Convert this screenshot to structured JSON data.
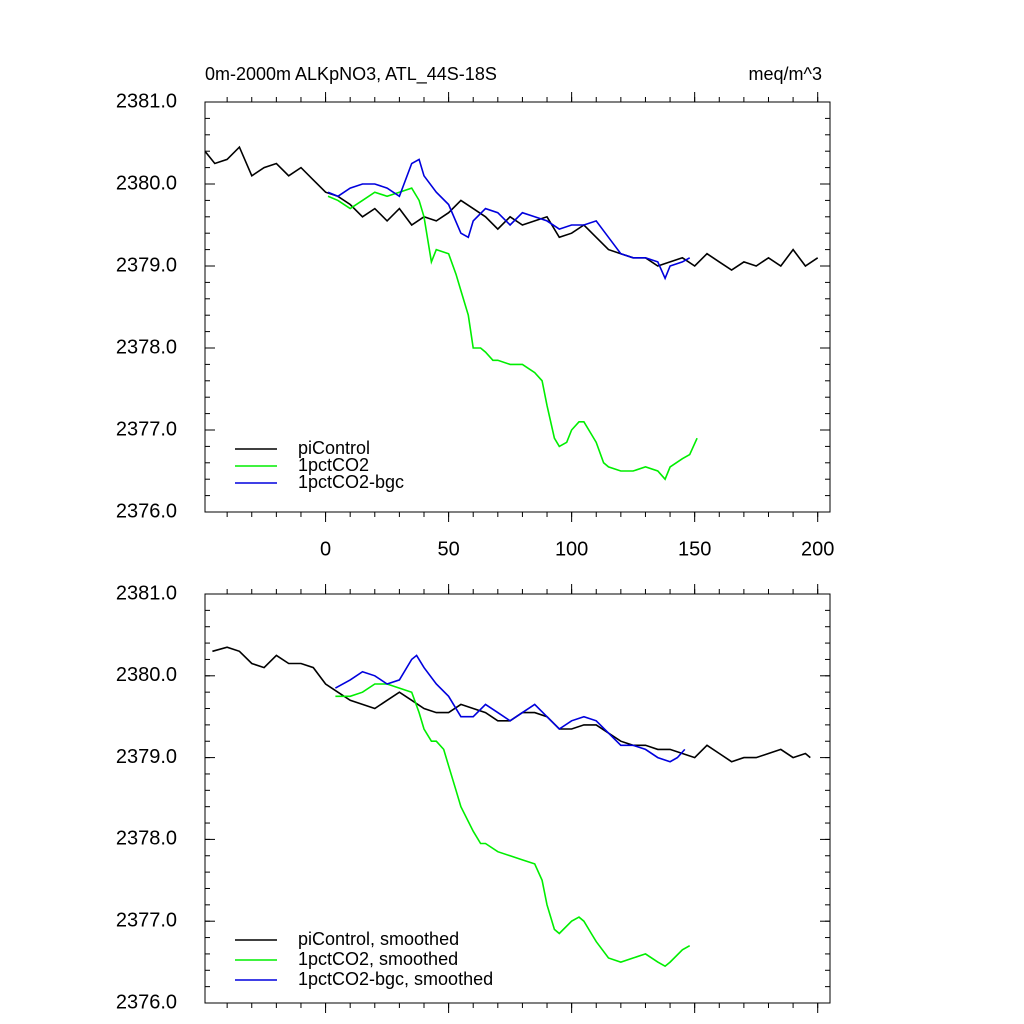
{
  "chart_data": [
    {
      "type": "line",
      "title": "0m-2000m ALKpNO3, ATL_44S-18S",
      "subtitle": "meq/m^3",
      "xlim": [
        -49,
        205
      ],
      "ylim": [
        2376,
        2381
      ],
      "xticks": [
        0,
        50,
        100,
        150,
        200
      ],
      "yticks": [
        {
          "value": 2376,
          "label": "2376.0"
        },
        {
          "value": 2377,
          "label": "2377.0"
        },
        {
          "value": 2378,
          "label": "2378.0"
        },
        {
          "value": 2379,
          "label": "2379.0"
        },
        {
          "value": 2380,
          "label": "2380.0"
        },
        {
          "value": 2381,
          "label": "2381.0"
        }
      ],
      "legend": "lower left",
      "series": [
        {
          "name": "piControl",
          "color": "#000000",
          "x": [
            -49,
            -45,
            -40,
            -35,
            -30,
            -25,
            -20,
            -15,
            -10,
            -5,
            0,
            5,
            10,
            15,
            20,
            25,
            30,
            35,
            40,
            45,
            50,
            55,
            60,
            65,
            70,
            75,
            80,
            85,
            90,
            95,
            100,
            105,
            110,
            115,
            120,
            125,
            130,
            135,
            140,
            145,
            150,
            155,
            160,
            165,
            170,
            175,
            180,
            185,
            190,
            195,
            200
          ],
          "values": [
            2380.4,
            2380.25,
            2380.3,
            2380.45,
            2380.1,
            2380.2,
            2380.25,
            2380.1,
            2380.2,
            2380.05,
            2379.9,
            2379.85,
            2379.75,
            2379.6,
            2379.7,
            2379.55,
            2379.7,
            2379.5,
            2379.6,
            2379.55,
            2379.65,
            2379.8,
            2379.7,
            2379.6,
            2379.45,
            2379.6,
            2379.5,
            2379.55,
            2379.6,
            2379.35,
            2379.4,
            2379.5,
            2379.35,
            2379.2,
            2379.15,
            2379.1,
            2379.1,
            2379.0,
            2379.05,
            2379.1,
            2379.0,
            2379.15,
            2379.05,
            2378.95,
            2379.05,
            2379.0,
            2379.1,
            2379.0,
            2379.2,
            2379.0,
            2379.1
          ]
        },
        {
          "name": "1pctCO2",
          "color": "#00ee00",
          "x": [
            1,
            5,
            10,
            15,
            20,
            25,
            30,
            35,
            38,
            40,
            43,
            45,
            50,
            53,
            55,
            58,
            60,
            63,
            65,
            68,
            70,
            75,
            80,
            85,
            88,
            90,
            93,
            95,
            98,
            100,
            103,
            105,
            108,
            110,
            113,
            115,
            120,
            125,
            130,
            135,
            138,
            140,
            145,
            148,
            151
          ],
          "values": [
            2379.85,
            2379.8,
            2379.7,
            2379.8,
            2379.9,
            2379.85,
            2379.9,
            2379.95,
            2379.8,
            2379.6,
            2379.05,
            2379.2,
            2379.15,
            2378.9,
            2378.7,
            2378.4,
            2378.0,
            2378.0,
            2377.95,
            2377.85,
            2377.85,
            2377.8,
            2377.8,
            2377.7,
            2377.6,
            2377.3,
            2376.9,
            2376.8,
            2376.85,
            2377.0,
            2377.1,
            2377.1,
            2376.95,
            2376.85,
            2376.6,
            2376.55,
            2376.5,
            2376.5,
            2376.55,
            2376.5,
            2376.4,
            2376.55,
            2376.65,
            2376.7,
            2376.9
          ]
        },
        {
          "name": "1pctCO2-bgc",
          "color": "#0000dd",
          "x": [
            1,
            5,
            10,
            15,
            20,
            25,
            30,
            35,
            38,
            40,
            45,
            50,
            55,
            58,
            60,
            65,
            70,
            75,
            80,
            85,
            90,
            95,
            100,
            105,
            110,
            115,
            120,
            125,
            130,
            135,
            138,
            140,
            145,
            148
          ],
          "values": [
            2379.9,
            2379.85,
            2379.95,
            2380.0,
            2380.0,
            2379.95,
            2379.85,
            2380.25,
            2380.3,
            2380.1,
            2379.9,
            2379.75,
            2379.4,
            2379.35,
            2379.55,
            2379.7,
            2379.65,
            2379.5,
            2379.65,
            2379.6,
            2379.55,
            2379.45,
            2379.5,
            2379.5,
            2379.55,
            2379.35,
            2379.15,
            2379.1,
            2379.1,
            2379.05,
            2378.85,
            2379.0,
            2379.05,
            2379.1
          ]
        }
      ]
    },
    {
      "type": "line",
      "xlim": [
        -49,
        205
      ],
      "ylim": [
        2376,
        2381
      ],
      "xticks": [
        0,
        50,
        100,
        150,
        200
      ],
      "yticks": [
        {
          "value": 2376,
          "label": "2376.0"
        },
        {
          "value": 2377,
          "label": "2377.0"
        },
        {
          "value": 2378,
          "label": "2378.0"
        },
        {
          "value": 2379,
          "label": "2379.0"
        },
        {
          "value": 2380,
          "label": "2380.0"
        },
        {
          "value": 2381,
          "label": "2381.0"
        }
      ],
      "legend": "lower left",
      "series": [
        {
          "name": "piControl, smoothed",
          "color": "#000000",
          "x": [
            -46,
            -40,
            -35,
            -30,
            -25,
            -20,
            -15,
            -10,
            -5,
            0,
            5,
            10,
            15,
            20,
            25,
            30,
            35,
            40,
            45,
            50,
            55,
            60,
            65,
            70,
            75,
            80,
            85,
            90,
            95,
            100,
            105,
            110,
            115,
            120,
            125,
            130,
            135,
            140,
            145,
            150,
            155,
            160,
            165,
            170,
            175,
            180,
            185,
            190,
            195,
            197
          ],
          "values": [
            2380.3,
            2380.35,
            2380.3,
            2380.15,
            2380.1,
            2380.25,
            2380.15,
            2380.15,
            2380.1,
            2379.9,
            2379.8,
            2379.7,
            2379.65,
            2379.6,
            2379.7,
            2379.8,
            2379.7,
            2379.6,
            2379.55,
            2379.55,
            2379.65,
            2379.6,
            2379.55,
            2379.45,
            2379.45,
            2379.55,
            2379.55,
            2379.5,
            2379.35,
            2379.35,
            2379.4,
            2379.4,
            2379.3,
            2379.2,
            2379.15,
            2379.15,
            2379.1,
            2379.1,
            2379.05,
            2379.0,
            2379.15,
            2379.05,
            2378.95,
            2379.0,
            2379.0,
            2379.05,
            2379.1,
            2379.0,
            2379.05,
            2379.0
          ]
        },
        {
          "name": "1pctCO2, smoothed",
          "color": "#00ee00",
          "x": [
            4,
            10,
            15,
            20,
            25,
            30,
            35,
            38,
            40,
            43,
            45,
            48,
            50,
            53,
            55,
            60,
            63,
            65,
            70,
            75,
            80,
            85,
            88,
            90,
            93,
            95,
            100,
            103,
            105,
            108,
            110,
            115,
            120,
            125,
            130,
            135,
            138,
            140,
            145,
            148
          ],
          "values": [
            2379.75,
            2379.75,
            2379.8,
            2379.9,
            2379.9,
            2379.85,
            2379.8,
            2379.55,
            2379.35,
            2379.2,
            2379.2,
            2379.1,
            2378.9,
            2378.6,
            2378.4,
            2378.1,
            2377.95,
            2377.95,
            2377.85,
            2377.8,
            2377.75,
            2377.7,
            2377.5,
            2377.2,
            2376.9,
            2376.85,
            2377.0,
            2377.05,
            2377.0,
            2376.85,
            2376.75,
            2376.55,
            2376.5,
            2376.55,
            2376.6,
            2376.5,
            2376.45,
            2376.5,
            2376.65,
            2376.7
          ]
        },
        {
          "name": "1pctCO2-bgc, smoothed",
          "color": "#0000dd",
          "x": [
            4,
            10,
            15,
            20,
            25,
            30,
            35,
            37,
            40,
            45,
            50,
            55,
            60,
            65,
            70,
            75,
            80,
            85,
            90,
            95,
            100,
            105,
            110,
            115,
            120,
            125,
            130,
            135,
            140,
            143,
            146
          ],
          "values": [
            2379.85,
            2379.95,
            2380.05,
            2380.0,
            2379.9,
            2379.95,
            2380.2,
            2380.25,
            2380.1,
            2379.9,
            2379.75,
            2379.5,
            2379.5,
            2379.65,
            2379.55,
            2379.45,
            2379.55,
            2379.65,
            2379.5,
            2379.35,
            2379.45,
            2379.5,
            2379.45,
            2379.3,
            2379.15,
            2379.15,
            2379.1,
            2379.0,
            2378.95,
            2379.0,
            2379.1
          ]
        }
      ]
    }
  ]
}
